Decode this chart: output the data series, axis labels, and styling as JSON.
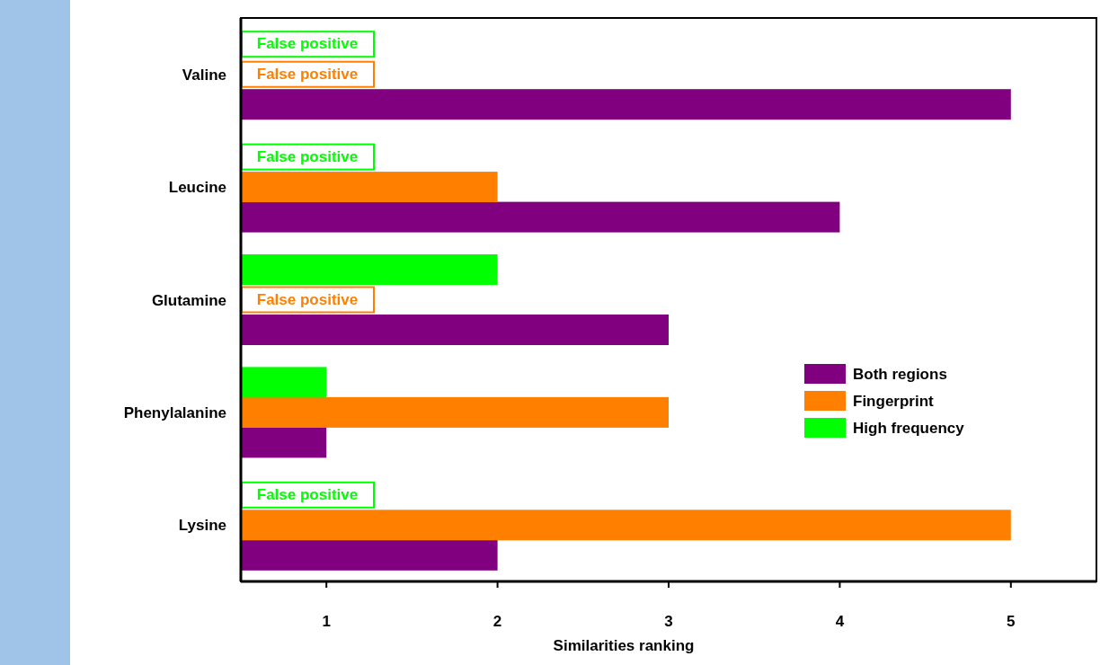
{
  "chart_data": {
    "type": "bar",
    "orientation": "horizontal",
    "xlabel": "Similarities ranking",
    "categories": [
      "Valine",
      "Leucine",
      "Glutamine",
      "Phenylalanine",
      "Lysine"
    ],
    "series": [
      {
        "name": "Both regions",
        "color": "#800080",
        "values": [
          5,
          4,
          3,
          1,
          2
        ]
      },
      {
        "name": "Fingerprint",
        "color": "#ff8000",
        "values": [
          null,
          2,
          null,
          3,
          5
        ],
        "value_labels": [
          "False positive",
          null,
          "False positive",
          null,
          null
        ]
      },
      {
        "name": "High frequency",
        "color": "#00ff00",
        "values": [
          null,
          null,
          2,
          1,
          null
        ],
        "value_labels": [
          "False positive",
          "False positive",
          null,
          null,
          "False positive"
        ]
      }
    ],
    "xlim": [
      0.5,
      5.5
    ],
    "xticks": [
      1,
      2,
      3,
      4,
      5
    ],
    "grid": false,
    "legend": "right"
  }
}
